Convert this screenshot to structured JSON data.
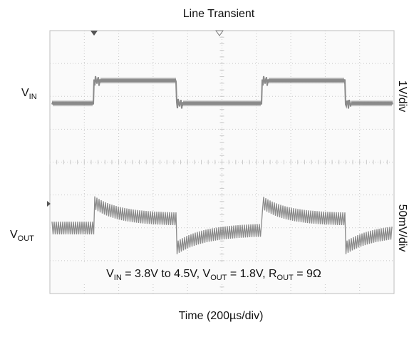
{
  "title": "Line Transient",
  "vin_label": {
    "main": "V",
    "sub": "IN"
  },
  "vout_label": {
    "main": "V",
    "sub": "OUT"
  },
  "vin_scale": "1V/div",
  "vout_scale": "50mV/div",
  "annotation": [
    "V",
    "IN",
    " = 3.8V to 4.5V, V",
    "OUT",
    " = 1.8V, R",
    "OUT",
    " = 9Ω"
  ],
  "x_label": "Time (200µs/div)"
}
